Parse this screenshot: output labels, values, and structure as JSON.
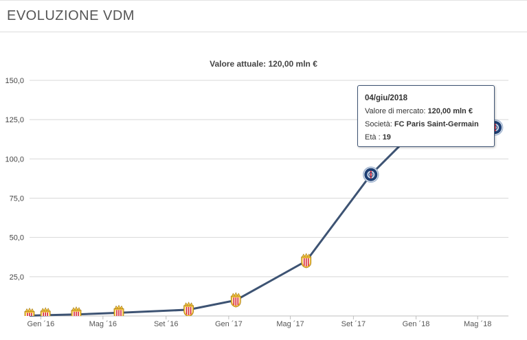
{
  "header": {
    "title": "EVOLUZIONE VDM"
  },
  "tooltip": {
    "date": "04/giu/2018",
    "value_label": "Valore di mercato:",
    "value": "120,00 mln €",
    "club_label": "Società:",
    "club": "FC Paris Saint-Germain",
    "age_label": "Età :",
    "age": "19"
  },
  "chart_data": {
    "type": "line",
    "title": "Valore attuale: 120,00 mln €",
    "ylim": [
      0,
      150
    ],
    "yticks": [
      {
        "value": 25,
        "label": "25,0"
      },
      {
        "value": 50,
        "label": "50,0"
      },
      {
        "value": 75,
        "label": "75,0"
      },
      {
        "value": 100,
        "label": "100,0"
      },
      {
        "value": 125,
        "label": "125,0"
      },
      {
        "value": 150,
        "label": "150,0"
      }
    ],
    "xlim": [
      "2015-12-10",
      "2018-06-30"
    ],
    "xticks": [
      {
        "date": "2016-01-01",
        "label": "Gen ´16"
      },
      {
        "date": "2016-05-01",
        "label": "Mag ´16"
      },
      {
        "date": "2016-09-01",
        "label": "Set ´16"
      },
      {
        "date": "2017-01-01",
        "label": "Gen ´17"
      },
      {
        "date": "2017-05-01",
        "label": "Mag ´17"
      },
      {
        "date": "2017-09-01",
        "label": "Set ´17"
      },
      {
        "date": "2018-01-01",
        "label": "Gen ´18"
      },
      {
        "date": "2018-05-01",
        "label": "Mag ´18"
      }
    ],
    "grid": true,
    "series": [
      {
        "points": [
          {
            "date": "2015-12-10",
            "value": 0.2,
            "club": "monaco"
          },
          {
            "date": "2016-01-10",
            "value": 0.5,
            "club": "monaco"
          },
          {
            "date": "2016-03-10",
            "value": 1,
            "club": "monaco"
          },
          {
            "date": "2016-06-01",
            "value": 2,
            "club": "monaco"
          },
          {
            "date": "2016-10-15",
            "value": 4,
            "club": "monaco"
          },
          {
            "date": "2017-01-15",
            "value": 10,
            "club": "monaco"
          },
          {
            "date": "2017-06-01",
            "value": 35,
            "club": "monaco"
          },
          {
            "date": "2017-10-05",
            "value": 90,
            "club": "psg"
          },
          {
            "date": "2018-01-05",
            "value": 120,
            "club": "psg"
          },
          {
            "date": "2018-06-04",
            "value": 120,
            "club": "psg"
          }
        ]
      }
    ],
    "colors": {
      "line": "#3d5373",
      "grid": "#d8d8d8",
      "monaco_red": "#d6202f",
      "psg_blue": "#1d3f74"
    }
  }
}
